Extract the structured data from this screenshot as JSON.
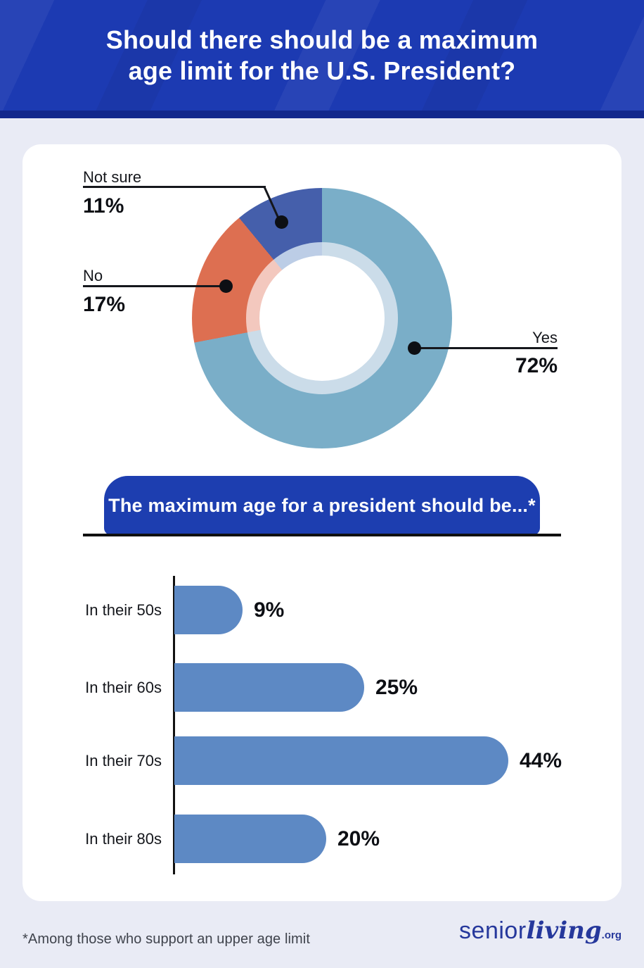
{
  "header": {
    "title_lines": [
      "Should there should be a maximum",
      "age limit for the U.S. President?"
    ]
  },
  "colors": {
    "header_blue": "#1c3ab2",
    "header_strip_blue": "#13288c",
    "banner_blue": "#1d3eb0",
    "page_background": "#e9ebf5",
    "card_background": "#ffffff",
    "leader_line_black": "#15171c",
    "logo_blue": "#26389c"
  },
  "chart_data": [
    {
      "type": "pie",
      "style": "donut",
      "title": "Should there should be a maximum age limit for the U.S. President?",
      "start_angle_deg": 0,
      "direction": "clockwise",
      "slices": [
        {
          "label": "Yes",
          "value": 72,
          "display": "72%",
          "color": "#7aaec8",
          "inner_color": "#cbdce9"
        },
        {
          "label": "No",
          "value": 17,
          "display": "17%",
          "color": "#dd6f51",
          "inner_color": "#f3c8be"
        },
        {
          "label": "Not sure",
          "value": 11,
          "display": "11%",
          "color": "#455fab",
          "inner_color": "#bccde6"
        }
      ]
    },
    {
      "type": "bar",
      "orientation": "horizontal",
      "title": "The maximum age for a president should be...*",
      "categories": [
        "In their 50s",
        "In their 60s",
        "In their 70s",
        "In their 80s"
      ],
      "values": [
        9,
        25,
        44,
        20
      ],
      "value_labels": [
        "9%",
        "25%",
        "44%",
        "20%"
      ],
      "bar_color": "#5d89c4",
      "xlim": [
        0,
        44
      ],
      "grid": false,
      "legend": "none",
      "footnote": "*Among those who support an upper age limit"
    }
  ],
  "banner": {
    "label": "The maximum age for a president should be...*"
  },
  "footer": {
    "note": "*Among those who support an upper age limit",
    "logo_senior": "senior",
    "logo_living": "living",
    "logo_org": ".org"
  }
}
